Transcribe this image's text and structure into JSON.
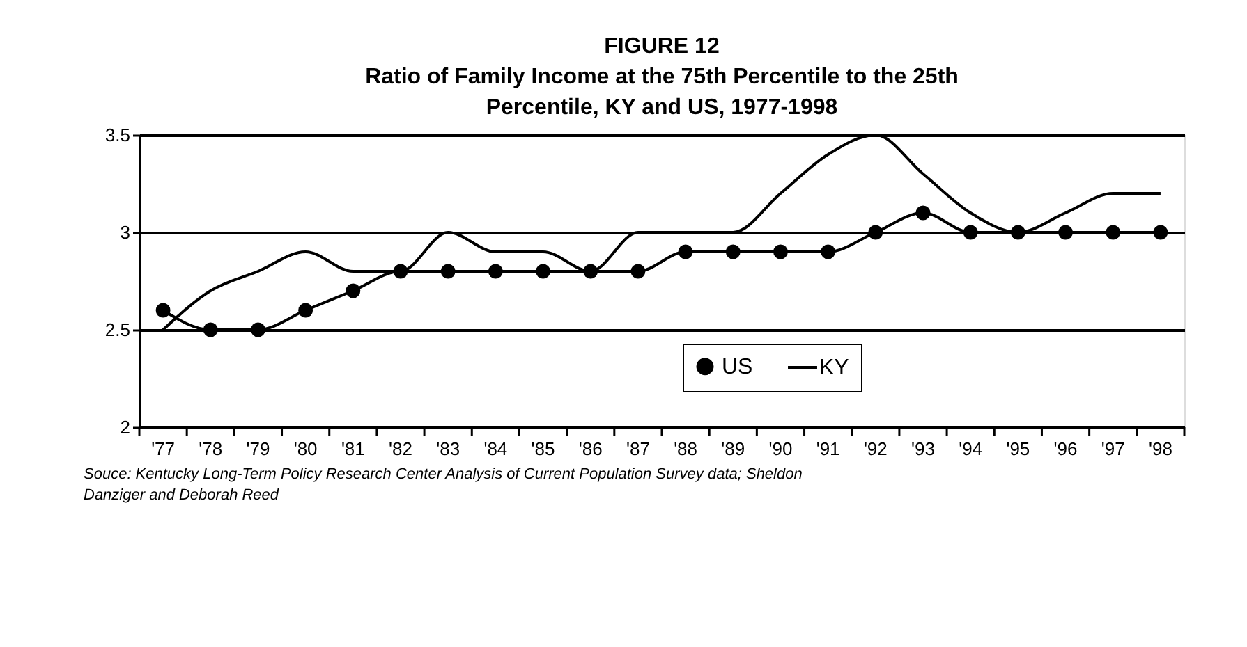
{
  "chart_data": {
    "type": "line",
    "title": "FIGURE 12",
    "subtitle": "Ratio of Family Income at the 75th Percentile to the 25th Percentile, KY and US, 1977-1998",
    "categories": [
      "'77",
      "'78",
      "'79",
      "'80",
      "'81",
      "'82",
      "'83",
      "'84",
      "'85",
      "'86",
      "'87",
      "'88",
      "'89",
      "'90",
      "'91",
      "'92",
      "'93",
      "'94",
      "'95",
      "'96",
      "'97",
      "'98"
    ],
    "series": [
      {
        "name": "US",
        "color": "#000000",
        "marker": "circle",
        "values": [
          2.6,
          2.5,
          2.5,
          2.6,
          2.7,
          2.8,
          2.8,
          2.8,
          2.8,
          2.8,
          2.8,
          2.9,
          2.9,
          2.9,
          2.9,
          3.0,
          3.1,
          3.0,
          3.0,
          3.0,
          3.0,
          3.0
        ]
      },
      {
        "name": "KY",
        "color": "#000000",
        "marker": "none",
        "values": [
          2.5,
          2.7,
          2.8,
          2.9,
          2.8,
          2.8,
          3.0,
          2.9,
          2.9,
          2.8,
          3.0,
          3.0,
          3.0,
          3.2,
          3.4,
          3.5,
          3.3,
          3.1,
          3.0,
          3.1,
          3.2,
          3.2
        ]
      }
    ],
    "ylim": [
      2,
      3.5
    ],
    "yticks": [
      2,
      2.5,
      3,
      3.5
    ],
    "grid": "y",
    "legend": "bottom right",
    "line_style": "solid",
    "annotations": [
      "Souce:  Kentucky Long-Term Policy Research Center Analysis of Current  Population Survey data; Sheldon Danziger and Deborah Reed"
    ]
  }
}
